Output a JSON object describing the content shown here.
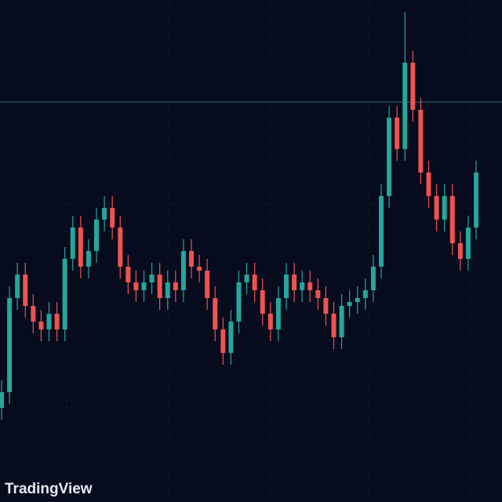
{
  "chart_data": {
    "type": "candlestick",
    "watermark": "TradingView",
    "open": [
      120,
      140,
      260,
      290,
      250,
      230,
      220,
      240,
      220,
      310,
      350,
      300,
      320,
      360,
      375,
      350,
      300,
      280,
      270,
      280,
      290,
      260,
      280,
      270,
      320,
      300,
      295,
      260,
      220,
      190,
      230,
      280,
      290,
      270,
      240,
      220,
      260,
      290,
      270,
      280,
      270,
      260,
      240,
      210,
      250,
      255,
      260,
      270,
      300,
      390,
      490,
      450,
      560,
      500,
      420,
      390,
      360,
      390,
      330,
      310,
      350
    ],
    "high": [
      155,
      275,
      305,
      305,
      265,
      245,
      255,
      255,
      325,
      365,
      365,
      335,
      375,
      390,
      390,
      365,
      315,
      295,
      295,
      305,
      305,
      295,
      295,
      335,
      335,
      315,
      310,
      275,
      235,
      245,
      295,
      305,
      305,
      285,
      255,
      275,
      305,
      305,
      295,
      295,
      285,
      275,
      255,
      265,
      270,
      275,
      285,
      315,
      405,
      505,
      505,
      625,
      575,
      515,
      435,
      405,
      405,
      405,
      345,
      365,
      435
    ],
    "low": [
      105,
      125,
      245,
      235,
      215,
      205,
      205,
      205,
      205,
      295,
      285,
      285,
      305,
      345,
      335,
      285,
      265,
      255,
      255,
      265,
      245,
      245,
      255,
      255,
      285,
      280,
      245,
      205,
      175,
      175,
      215,
      265,
      255,
      225,
      205,
      205,
      245,
      255,
      255,
      255,
      245,
      225,
      195,
      195,
      235,
      240,
      245,
      255,
      285,
      375,
      435,
      435,
      485,
      405,
      375,
      345,
      345,
      315,
      295,
      295,
      335
    ],
    "close": [
      140,
      260,
      290,
      250,
      230,
      220,
      240,
      220,
      310,
      350,
      300,
      320,
      360,
      375,
      350,
      300,
      280,
      270,
      280,
      290,
      260,
      280,
      270,
      320,
      300,
      295,
      260,
      220,
      190,
      230,
      280,
      290,
      270,
      240,
      220,
      260,
      290,
      270,
      280,
      270,
      260,
      240,
      210,
      250,
      255,
      260,
      270,
      300,
      390,
      490,
      450,
      560,
      500,
      420,
      390,
      360,
      390,
      330,
      310,
      350,
      420
    ],
    "up_color": "#26a69a",
    "down_color": "#ef5350",
    "price_line": 510,
    "ylim": [
      0,
      640
    ]
  }
}
